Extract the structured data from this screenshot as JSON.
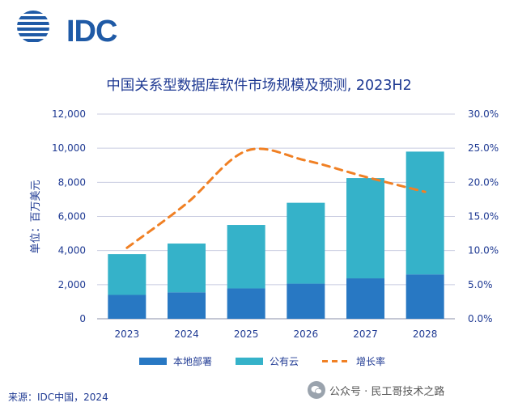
{
  "logo": {
    "text": "IDC"
  },
  "chart_data": {
    "type": "bar",
    "title": "中国关系型数据库软件市场规模及预测, 2023H2",
    "ylabel": "单位：百万美元",
    "categories": [
      "2023",
      "2024",
      "2025",
      "2026",
      "2027",
      "2028"
    ],
    "series": [
      {
        "name": "本地部署",
        "kind": "bar",
        "stacked": true,
        "color": "#2878c3",
        "values": [
          1400,
          1550,
          1780,
          2060,
          2370,
          2600
        ]
      },
      {
        "name": "公有云",
        "kind": "bar",
        "stacked": true,
        "color": "#35b2c9",
        "values": [
          2390,
          2860,
          3720,
          4740,
          5880,
          7200
        ]
      },
      {
        "name": "增长率",
        "kind": "line",
        "axis": "right",
        "dashed": true,
        "color": "#f08024",
        "values": [
          0.104,
          0.169,
          0.246,
          0.232,
          0.208,
          0.186
        ]
      }
    ],
    "ylim": [
      0,
      12000
    ],
    "yticks": [
      "0",
      "2,000",
      "4,000",
      "6,000",
      "8,000",
      "10,000",
      "12,000"
    ],
    "y2lim": [
      0,
      0.3
    ],
    "y2ticks": [
      "0.0%",
      "5.0%",
      "10.0%",
      "15.0%",
      "20.0%",
      "25.0%",
      "30.0%"
    ],
    "legend_position": "bottom",
    "grid": true
  },
  "source": "来源：IDC中国，2024",
  "watermark": "公众号 · 民工哥技术之路"
}
